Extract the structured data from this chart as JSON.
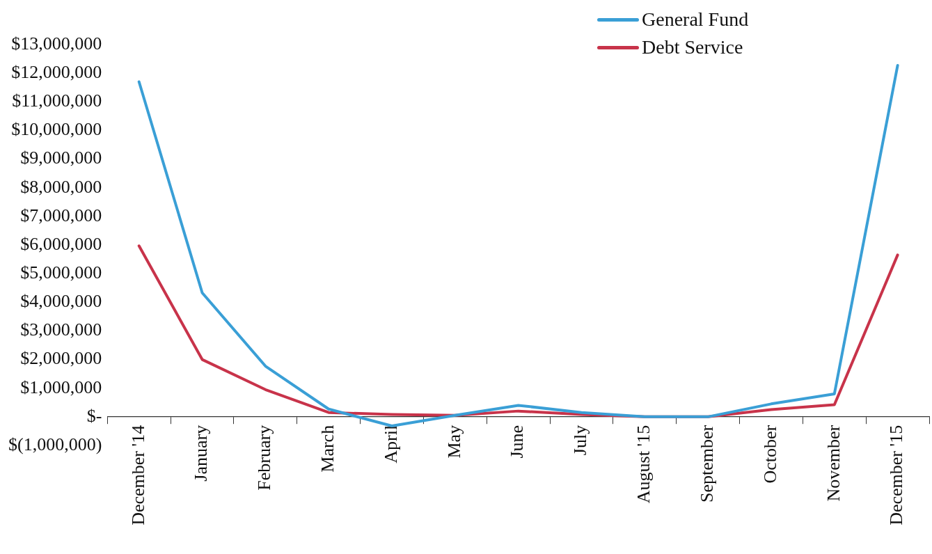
{
  "chart_data": {
    "type": "line",
    "categories": [
      "December '14",
      "January",
      "February",
      "March",
      "April",
      "May",
      "June",
      "July",
      "August '15",
      "September",
      "October",
      "November",
      "December '15"
    ],
    "series": [
      {
        "name": "General Fund",
        "color": "#3a9fd6",
        "values": [
          11700000,
          4330000,
          1770000,
          270000,
          -320000,
          50000,
          400000,
          150000,
          0,
          0,
          450000,
          800000,
          12270000
        ]
      },
      {
        "name": "Debt Service",
        "color": "#c8334a",
        "values": [
          5970000,
          2000000,
          950000,
          150000,
          80000,
          50000,
          200000,
          80000,
          0,
          0,
          250000,
          420000,
          5650000
        ]
      }
    ],
    "ylim": [
      -1000000,
      13000000
    ],
    "yticks": [
      {
        "value": -1000000,
        "label": "$(1,000,000)"
      },
      {
        "value": 0,
        "label": "$-"
      },
      {
        "value": 1000000,
        "label": "$1,000,000"
      },
      {
        "value": 2000000,
        "label": "$2,000,000"
      },
      {
        "value": 3000000,
        "label": "$3,000,000"
      },
      {
        "value": 4000000,
        "label": "$4,000,000"
      },
      {
        "value": 5000000,
        "label": "$5,000,000"
      },
      {
        "value": 6000000,
        "label": "$6,000,000"
      },
      {
        "value": 7000000,
        "label": "$7,000,000"
      },
      {
        "value": 8000000,
        "label": "$8,000,000"
      },
      {
        "value": 9000000,
        "label": "$9,000,000"
      },
      {
        "value": 10000000,
        "label": "$10,000,000"
      },
      {
        "value": 11000000,
        "label": "$11,000,000"
      },
      {
        "value": 12000000,
        "label": "$12,000,000"
      },
      {
        "value": 13000000,
        "label": "$13,000,000"
      }
    ],
    "grid": false,
    "legend": "top right",
    "marker": "none",
    "line_style": "solid"
  }
}
